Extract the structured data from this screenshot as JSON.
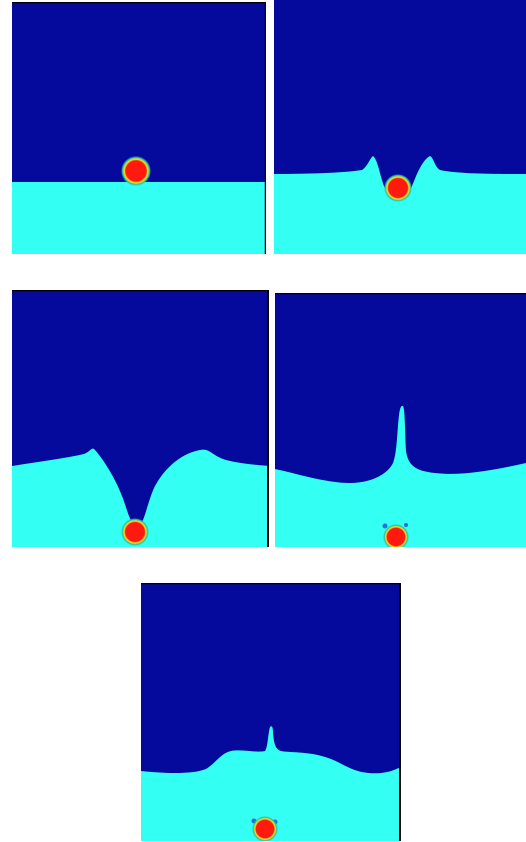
{
  "colors": {
    "gas": "#050a9c",
    "liquid": "#33fff2",
    "particle_core": "#ff1a10",
    "particle_rim": "#f2e81a",
    "particle_halo": "#2fbfa2",
    "frame": "#000000",
    "background": "#ffffff"
  },
  "panels": [
    {
      "id": "p1",
      "name": "panel-1",
      "frame": "top-right"
    },
    {
      "id": "p2",
      "name": "panel-2",
      "frame": "none"
    },
    {
      "id": "p3",
      "name": "panel-3",
      "frame": "top-right"
    },
    {
      "id": "p4",
      "name": "panel-4",
      "frame": "top"
    },
    {
      "id": "p5",
      "name": "panel-5",
      "frame": "top-right"
    }
  ]
}
